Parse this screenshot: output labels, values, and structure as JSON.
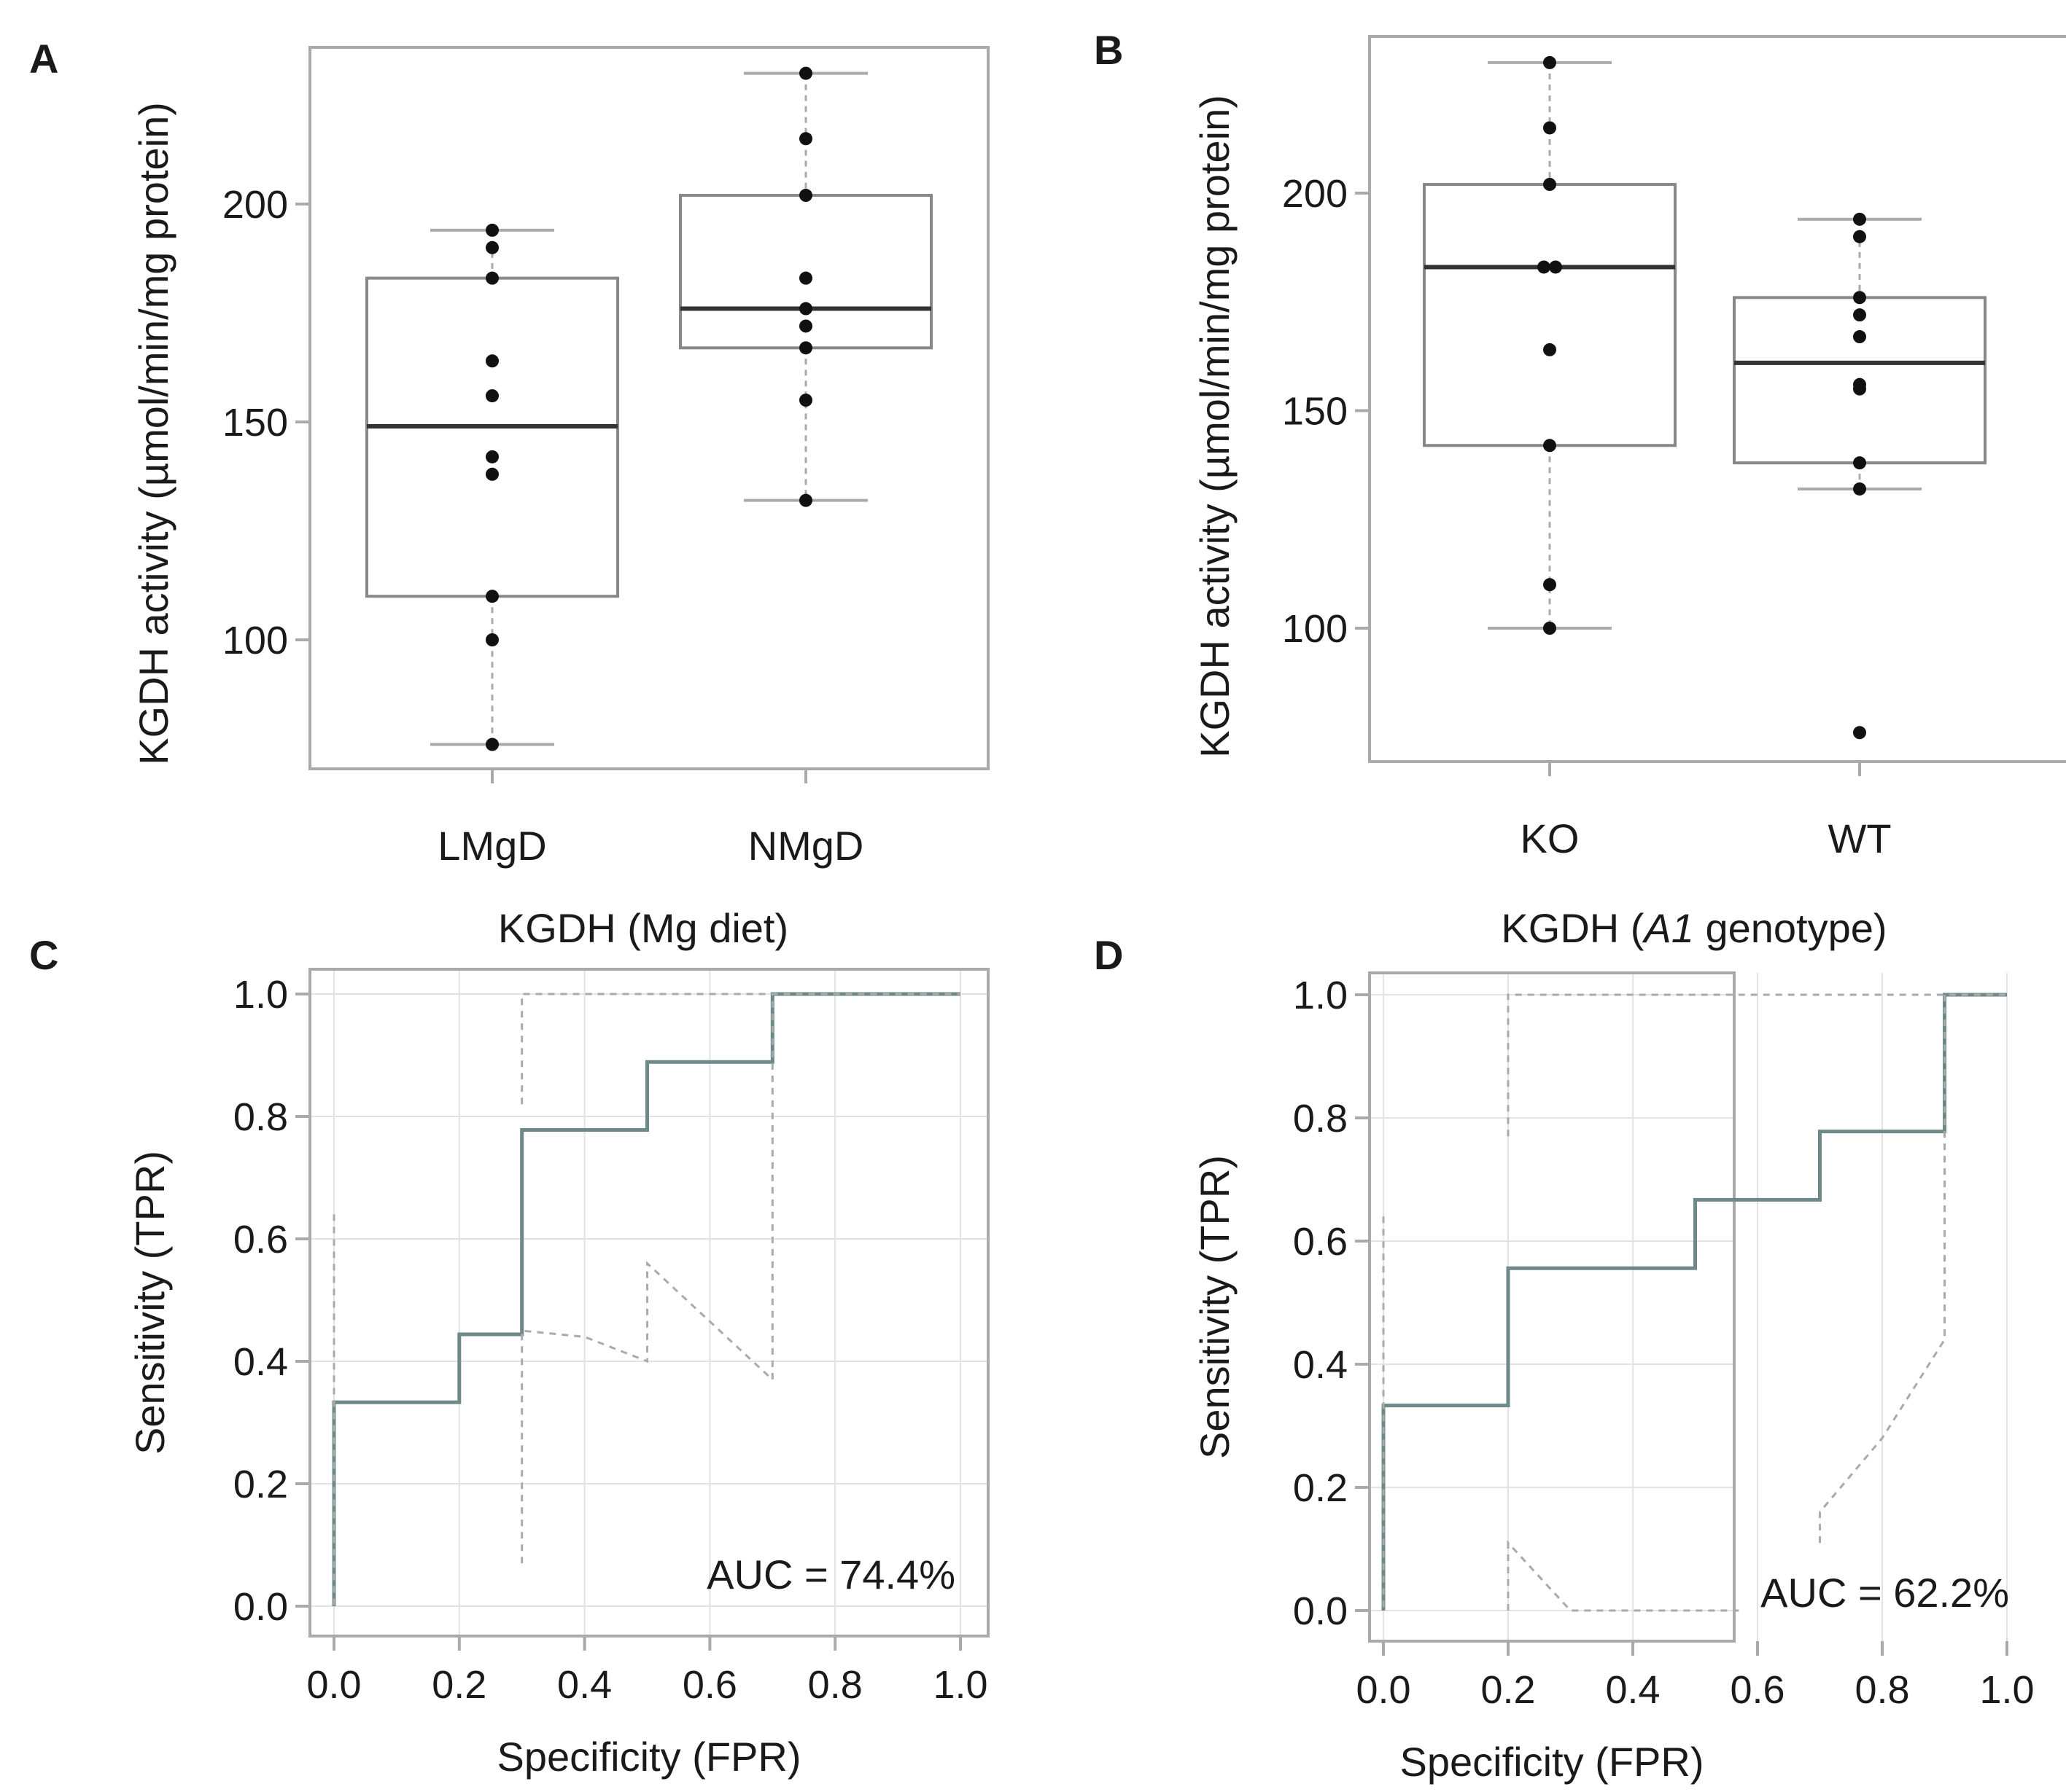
{
  "colors": {
    "frame": "#aaaaaa",
    "box": "#888888",
    "median": "#333333",
    "whisker": "#aaaaaa",
    "point": "#111111",
    "roc": "#6e8a88",
    "ci": "#aaaaaa",
    "grid": "#e3e3e3"
  },
  "chart_data": [
    {
      "panel": "A",
      "type": "box",
      "title": "",
      "xlabel": "",
      "ylabel": "KGDH activity (µmol/min/mg protein)",
      "ylim": [
        70,
        235
      ],
      "yticks": [
        100,
        150,
        200
      ],
      "categories": [
        "LMgD",
        "NMgD"
      ],
      "boxes": [
        {
          "name": "LMgD",
          "whisker_low": 76,
          "q1": 110,
          "median": 149,
          "q3": 183,
          "whisker_high": 194
        },
        {
          "name": "NMgD",
          "whisker_low": 132,
          "q1": 167,
          "median": 176,
          "q3": 202,
          "whisker_high": 230
        }
      ],
      "points": [
        {
          "category": "LMgD",
          "values": [
            194,
            190,
            183,
            164,
            156,
            142,
            138,
            110,
            100,
            76
          ]
        },
        {
          "category": "NMgD",
          "values": [
            230,
            215,
            202,
            183,
            176,
            172,
            167,
            155,
            132
          ]
        }
      ]
    },
    {
      "panel": "B",
      "type": "box",
      "title": "",
      "xlabel": "",
      "ylabel": "KGDH activity (µmol/min/mg protein)",
      "ylim": [
        70,
        235
      ],
      "yticks": [
        100,
        150,
        200
      ],
      "categories": [
        "KO",
        "WT"
      ],
      "boxes": [
        {
          "name": "KO",
          "whisker_low": 100,
          "q1": 142,
          "median": 183,
          "q3": 202,
          "whisker_high": 230
        },
        {
          "name": "WT",
          "whisker_low": 132,
          "q1": 138,
          "median": 161,
          "q3": 176,
          "whisker_high": 194
        }
      ],
      "points": [
        {
          "category": "KO",
          "values": [
            230,
            215,
            202,
            183,
            183,
            164,
            142,
            110,
            100
          ]
        },
        {
          "category": "WT",
          "values": [
            194,
            190,
            176,
            172,
            167,
            156,
            155,
            138,
            132,
            76
          ]
        }
      ]
    },
    {
      "panel": "C",
      "type": "line",
      "title": "KGDH (Mg diet)",
      "title_parts": [],
      "xlabel": "Specificity (FPR)",
      "ylabel": "Sensitivity (TPR)",
      "xlim": [
        0,
        1
      ],
      "ylim": [
        0,
        1
      ],
      "xticks": [
        "0.0",
        "0.2",
        "0.4",
        "0.6",
        "0.8",
        "1.0"
      ],
      "yticks": [
        "0.0",
        "0.2",
        "0.4",
        "0.6",
        "0.8",
        "1.0"
      ],
      "grid": true,
      "annotation": "AUC = 74.4%",
      "series": [
        {
          "role": "roc",
          "points": [
            [
              0,
              0
            ],
            [
              0,
              0.333
            ],
            [
              0.2,
              0.333
            ],
            [
              0.2,
              0.444
            ],
            [
              0.3,
              0.444
            ],
            [
              0.3,
              0.778
            ],
            [
              0.5,
              0.778
            ],
            [
              0.5,
              0.889
            ],
            [
              0.7,
              0.889
            ],
            [
              0.7,
              1
            ],
            [
              1,
              1
            ]
          ]
        },
        {
          "role": "ci",
          "points": [
            [
              0,
              0.64
            ],
            [
              0,
              0
            ]
          ]
        },
        {
          "role": "ci",
          "points": [
            [
              0.3,
              0.82
            ],
            [
              0.3,
              1
            ],
            [
              1,
              1
            ]
          ]
        },
        {
          "role": "ci",
          "points": [
            [
              0.3,
              0.07
            ],
            [
              0.3,
              0.45
            ],
            [
              0.4,
              0.44
            ],
            [
              0.5,
              0.4
            ],
            [
              0.5,
              0.56
            ],
            [
              0.7,
              0.37
            ],
            [
              0.7,
              1
            ]
          ]
        }
      ]
    },
    {
      "panel": "D",
      "type": "line",
      "title": "",
      "title_parts": [
        "KGDH (",
        "A1",
        " genotype)"
      ],
      "xlabel": "Specificity (FPR)",
      "ylabel": "Sensitivity (TPR)",
      "xlim": [
        0,
        1
      ],
      "ylim": [
        0,
        1
      ],
      "xticks": [
        "0.0",
        "0.2",
        "0.4",
        "0.6",
        "0.8",
        "1.0"
      ],
      "yticks": [
        "0.0",
        "0.2",
        "0.4",
        "0.6",
        "0.8",
        "1.0"
      ],
      "grid": true,
      "annotation": "AUC = 62.2%",
      "series": [
        {
          "role": "roc",
          "points": [
            [
              0,
              0
            ],
            [
              0,
              0.333
            ],
            [
              0.2,
              0.333
            ],
            [
              0.2,
              0.556
            ],
            [
              0.5,
              0.556
            ],
            [
              0.5,
              0.667
            ],
            [
              0.7,
              0.667
            ],
            [
              0.7,
              0.778
            ],
            [
              0.9,
              0.778
            ],
            [
              0.9,
              1
            ],
            [
              1,
              1
            ]
          ]
        },
        {
          "role": "ci",
          "points": [
            [
              0,
              0.64
            ],
            [
              0,
              0
            ]
          ]
        },
        {
          "role": "ci",
          "points": [
            [
              0.2,
              0.77
            ],
            [
              0.2,
              1
            ],
            [
              1,
              1
            ]
          ]
        },
        {
          "role": "ci",
          "points": [
            [
              0.2,
              0
            ],
            [
              0.2,
              0.11
            ],
            [
              0.3,
              0
            ],
            [
              0.57,
              0
            ]
          ]
        },
        {
          "role": "ci",
          "points": [
            [
              0.7,
              0.11
            ],
            [
              0.7,
              0.16
            ],
            [
              0.8,
              0.28
            ],
            [
              0.9,
              0.44
            ],
            [
              0.9,
              1
            ]
          ]
        }
      ]
    }
  ]
}
